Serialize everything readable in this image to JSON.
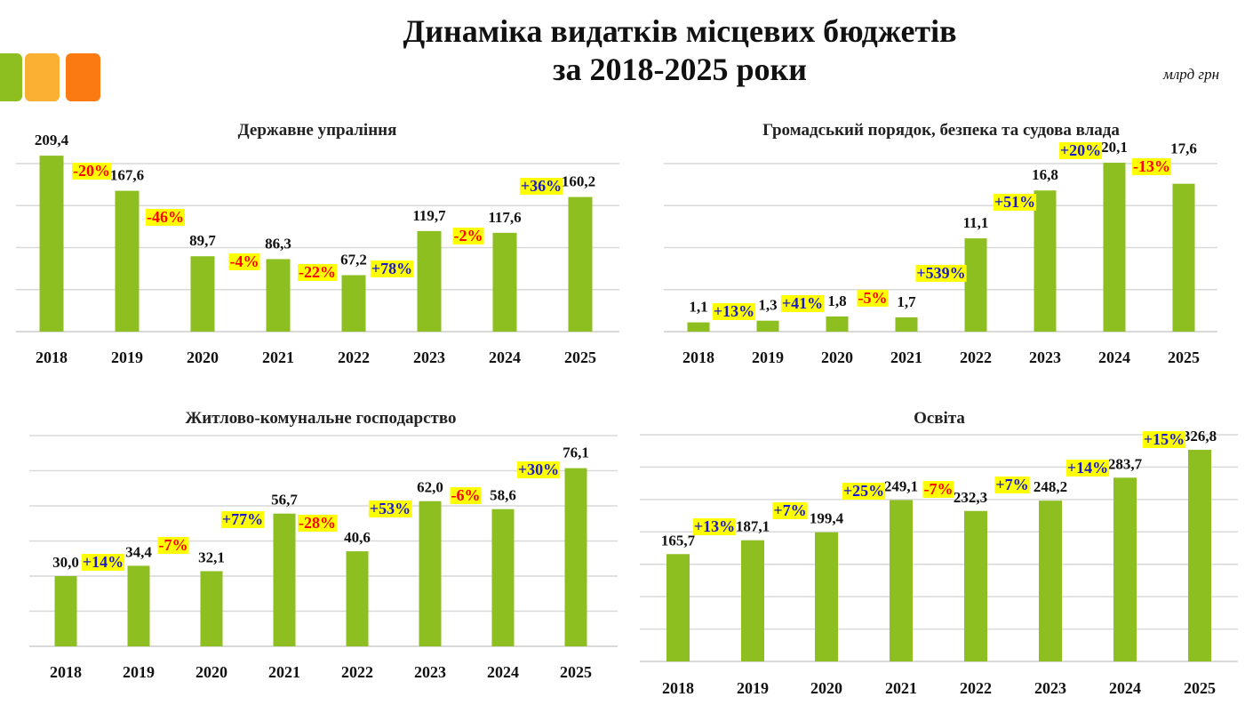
{
  "header": {
    "title_line1": "Динаміка видатків місцевих бюджетів",
    "title_line2": "за 2018-2025 роки",
    "units": "млрд грн",
    "logo_colors": [
      "#8cbf1f",
      "#fbb034",
      "#fb7b12"
    ]
  },
  "colors": {
    "bar": "#8cbf1f",
    "grid": "#d9d9d9",
    "positive": "#1a1acc",
    "negative": "#ff0000",
    "highlight": "#ffff00"
  },
  "chart_data": [
    {
      "type": "bar",
      "title": "Державне упраління",
      "categories": [
        "2018",
        "2019",
        "2020",
        "2021",
        "2022",
        "2023",
        "2024",
        "2025"
      ],
      "values": [
        209.4,
        167.6,
        89.7,
        86.3,
        67.2,
        119.7,
        117.6,
        160.2
      ],
      "value_labels": [
        "209,4",
        "167,6",
        "89,7",
        "86,3",
        "67,2",
        "119,7",
        "117,6",
        "160,2"
      ],
      "changes": [
        "-20%",
        "-46%",
        "-4%",
        "-22%",
        "+78%",
        "-2%",
        "+36%"
      ],
      "ylim": [
        0,
        200
      ],
      "grid": true,
      "gridlines": 4
    },
    {
      "type": "bar",
      "title": "Громадський порядок, безпека та судова влада",
      "categories": [
        "2018",
        "2019",
        "2020",
        "2021",
        "2022",
        "2023",
        "2024",
        "2025"
      ],
      "values": [
        1.1,
        1.3,
        1.8,
        1.7,
        11.1,
        16.8,
        20.1,
        17.6
      ],
      "value_labels": [
        "1,1",
        "1,3",
        "1,8",
        "1,7",
        "11,1",
        "16,8",
        "20,1",
        "17,6"
      ],
      "changes": [
        "+13%",
        "+41%",
        "-5%",
        "+539%",
        "+51%",
        "+20%",
        "-13%"
      ],
      "ylim": [
        0,
        20
      ],
      "grid": true,
      "gridlines": 4
    },
    {
      "type": "bar",
      "title": "Житлово-комунальне господарство",
      "categories": [
        "2018",
        "2019",
        "2020",
        "2021",
        "2022",
        "2023",
        "2024",
        "2025"
      ],
      "values": [
        30.0,
        34.4,
        32.1,
        56.7,
        40.6,
        62.0,
        58.6,
        76.1
      ],
      "value_labels": [
        "30,0",
        "34,4",
        "32,1",
        "56,7",
        "40,6",
        "62,0",
        "58,6",
        "76,1"
      ],
      "changes": [
        "+14%",
        "-7%",
        "+77%",
        "-28%",
        "+53%",
        "-6%",
        "+30%"
      ],
      "ylim": [
        0,
        90
      ],
      "grid": true,
      "gridlines": 6
    },
    {
      "type": "bar",
      "title": "Освіта",
      "categories": [
        "2018",
        "2019",
        "2020",
        "2021",
        "2022",
        "2023",
        "2024",
        "2025"
      ],
      "values": [
        165.7,
        187.1,
        199.4,
        249.1,
        232.3,
        248.2,
        283.7,
        326.8
      ],
      "value_labels": [
        "165,7",
        "187,1",
        "199,4",
        "249,1",
        "232,3",
        "248,2",
        "283,7",
        "326,8"
      ],
      "changes": [
        "+13%",
        "+7%",
        "+25%",
        "-7%",
        "+7%",
        "+14%",
        "+15%"
      ],
      "ylim": [
        0,
        350
      ],
      "grid": true,
      "gridlines": 7
    }
  ]
}
